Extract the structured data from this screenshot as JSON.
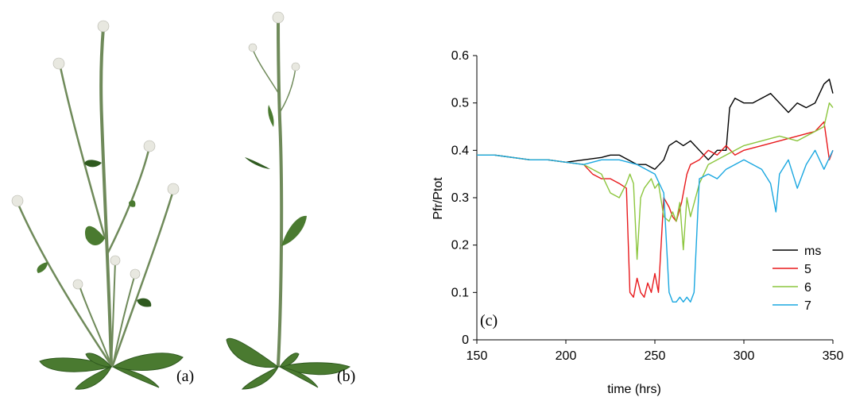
{
  "panels": {
    "a_label": "(a)",
    "b_label": "(b)",
    "c_label": "(c)"
  },
  "colors": {
    "ms": "#000000",
    "s5": "#e8191c",
    "s6": "#8cc63e",
    "s7": "#1aa7e0",
    "leaf": "#4a7a30",
    "leaf_dark": "#2f5a1f",
    "stem": "#6f8a5a",
    "flower": "#e8e8e0"
  },
  "chart_data": {
    "type": "line",
    "xlabel": "time (hrs)",
    "ylabel": "Pfr/Ptot",
    "xlim": [
      150,
      350
    ],
    "ylim": [
      0,
      0.6
    ],
    "xticks": [
      150,
      200,
      250,
      300,
      350
    ],
    "yticks": [
      0,
      0.1,
      0.2,
      0.3,
      0.4,
      0.5,
      0.6
    ],
    "grid": false,
    "legend_position": "bottom-right",
    "series": [
      {
        "name": "ms",
        "color": "#000000",
        "x": [
          150,
          160,
          170,
          180,
          190,
          200,
          210,
          220,
          225,
          230,
          235,
          240,
          245,
          250,
          255,
          258,
          262,
          266,
          270,
          275,
          280,
          285,
          290,
          292,
          295,
          300,
          305,
          310,
          315,
          320,
          325,
          330,
          335,
          340,
          345,
          348,
          350
        ],
        "y": [
          0.39,
          0.39,
          0.385,
          0.38,
          0.38,
          0.375,
          0.38,
          0.385,
          0.39,
          0.39,
          0.38,
          0.37,
          0.37,
          0.36,
          0.38,
          0.41,
          0.42,
          0.41,
          0.42,
          0.4,
          0.38,
          0.4,
          0.4,
          0.49,
          0.51,
          0.5,
          0.5,
          0.51,
          0.52,
          0.5,
          0.48,
          0.5,
          0.49,
          0.5,
          0.54,
          0.55,
          0.52
        ]
      },
      {
        "name": "5",
        "color": "#e8191c",
        "x": [
          150,
          160,
          170,
          180,
          190,
          200,
          210,
          215,
          220,
          225,
          230,
          234,
          236,
          238,
          240,
          242,
          244,
          246,
          248,
          250,
          252,
          255,
          258,
          260,
          262,
          265,
          268,
          270,
          275,
          280,
          285,
          290,
          295,
          300,
          310,
          320,
          330,
          340,
          345,
          348,
          350
        ],
        "y": [
          0.39,
          0.39,
          0.385,
          0.38,
          0.38,
          0.375,
          0.37,
          0.35,
          0.34,
          0.34,
          0.33,
          0.32,
          0.1,
          0.09,
          0.13,
          0.1,
          0.09,
          0.12,
          0.1,
          0.14,
          0.1,
          0.3,
          0.28,
          0.26,
          0.25,
          0.29,
          0.35,
          0.37,
          0.38,
          0.4,
          0.39,
          0.41,
          0.39,
          0.4,
          0.41,
          0.42,
          0.43,
          0.44,
          0.46,
          0.38,
          0.4
        ]
      },
      {
        "name": "6",
        "color": "#8cc63e",
        "x": [
          150,
          160,
          170,
          180,
          190,
          200,
          210,
          215,
          220,
          225,
          230,
          234,
          236,
          238,
          240,
          242,
          244,
          246,
          248,
          250,
          252,
          255,
          258,
          260,
          262,
          264,
          266,
          268,
          270,
          275,
          280,
          285,
          290,
          300,
          310,
          320,
          330,
          340,
          345,
          348,
          350
        ],
        "y": [
          0.39,
          0.39,
          0.385,
          0.38,
          0.38,
          0.375,
          0.37,
          0.36,
          0.35,
          0.31,
          0.3,
          0.33,
          0.35,
          0.33,
          0.17,
          0.3,
          0.32,
          0.33,
          0.34,
          0.32,
          0.33,
          0.26,
          0.25,
          0.27,
          0.25,
          0.29,
          0.19,
          0.3,
          0.26,
          0.33,
          0.37,
          0.38,
          0.39,
          0.41,
          0.42,
          0.43,
          0.42,
          0.44,
          0.45,
          0.5,
          0.49
        ]
      },
      {
        "name": "7",
        "color": "#1aa7e0",
        "x": [
          150,
          160,
          170,
          180,
          190,
          200,
          210,
          220,
          230,
          240,
          245,
          250,
          255,
          258,
          260,
          262,
          264,
          266,
          268,
          270,
          272,
          275,
          280,
          285,
          290,
          295,
          300,
          305,
          310,
          315,
          318,
          320,
          325,
          330,
          335,
          340,
          345,
          350
        ],
        "y": [
          0.39,
          0.39,
          0.385,
          0.38,
          0.38,
          0.375,
          0.37,
          0.38,
          0.38,
          0.37,
          0.36,
          0.35,
          0.31,
          0.1,
          0.08,
          0.08,
          0.09,
          0.08,
          0.09,
          0.08,
          0.1,
          0.34,
          0.35,
          0.34,
          0.36,
          0.37,
          0.38,
          0.37,
          0.36,
          0.33,
          0.27,
          0.35,
          0.38,
          0.32,
          0.37,
          0.4,
          0.36,
          0.4
        ]
      }
    ]
  }
}
